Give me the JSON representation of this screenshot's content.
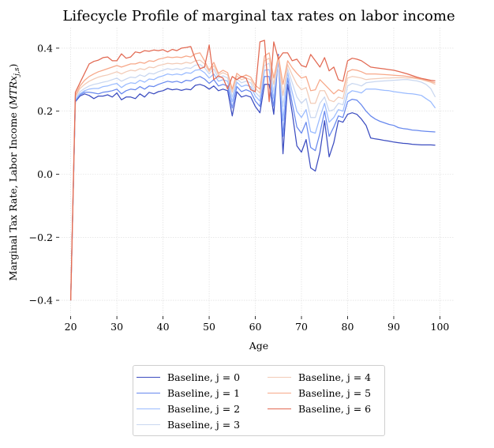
{
  "chart_data": {
    "type": "line",
    "title": "Lifecycle Profile of marginal tax rates on labor income",
    "xlabel": "Age",
    "ylabel_main": "Marginal Tax Rate, Labor Income (",
    "ylabel_math": "MTRx",
    "ylabel_sub": "j,s",
    "ylabel_close": ")",
    "xlim": [
      17.5,
      103
    ],
    "ylim": [
      -0.45,
      0.465
    ],
    "xticks": [
      20,
      30,
      40,
      50,
      60,
      70,
      80,
      90,
      100
    ],
    "yticks": [
      -0.4,
      -0.2,
      0.0,
      0.2,
      0.4
    ],
    "ytick_labels": [
      "−0.4",
      "−0.2",
      "0.0",
      "0.2",
      "0.4"
    ],
    "grid": true,
    "legend_placement": "below",
    "x": [
      20,
      21,
      22,
      23,
      24,
      25,
      26,
      27,
      28,
      29,
      30,
      31,
      32,
      33,
      34,
      35,
      36,
      37,
      38,
      39,
      40,
      41,
      42,
      43,
      44,
      45,
      46,
      47,
      48,
      49,
      50,
      51,
      52,
      53,
      54,
      55,
      56,
      57,
      58,
      59,
      60,
      61,
      62,
      63,
      64,
      65,
      66,
      67,
      68,
      69,
      70,
      71,
      72,
      73,
      74,
      75,
      76,
      77,
      78,
      79,
      80,
      81,
      82,
      83,
      84,
      85,
      86,
      87,
      88,
      89,
      90,
      91,
      92,
      93,
      94,
      95,
      96,
      97,
      98,
      99
    ],
    "series": [
      {
        "name": "Baseline, j = 0",
        "color": "#3b4cc0",
        "values": [
          -0.4,
          0.23,
          0.248,
          0.255,
          0.25,
          0.24,
          0.248,
          0.248,
          0.252,
          0.245,
          0.258,
          0.236,
          0.245,
          0.245,
          0.24,
          0.255,
          0.245,
          0.26,
          0.255,
          0.262,
          0.265,
          0.272,
          0.268,
          0.27,
          0.266,
          0.27,
          0.268,
          0.282,
          0.285,
          0.28,
          0.27,
          0.28,
          0.265,
          0.27,
          0.265,
          0.185,
          0.262,
          0.245,
          0.25,
          0.245,
          0.215,
          0.195,
          0.285,
          0.285,
          0.19,
          0.38,
          0.065,
          0.285,
          0.195,
          0.09,
          0.07,
          0.11,
          0.02,
          0.01,
          0.07,
          0.17,
          0.055,
          0.1,
          0.17,
          0.165,
          0.19,
          0.195,
          0.19,
          0.175,
          0.155,
          0.115,
          0.112,
          0.11,
          0.107,
          0.105,
          0.102,
          0.1,
          0.098,
          0.097,
          0.095,
          0.094,
          0.093,
          0.093,
          0.093,
          0.092
        ]
      },
      {
        "name": "Baseline, j = 1",
        "color": "#6788ee",
        "values": [
          -0.4,
          0.233,
          0.252,
          0.26,
          0.26,
          0.258,
          0.255,
          0.26,
          0.262,
          0.265,
          0.27,
          0.255,
          0.265,
          0.27,
          0.268,
          0.278,
          0.27,
          0.28,
          0.278,
          0.285,
          0.29,
          0.295,
          0.292,
          0.295,
          0.29,
          0.298,
          0.296,
          0.305,
          0.31,
          0.302,
          0.288,
          0.3,
          0.28,
          0.285,
          0.28,
          0.21,
          0.278,
          0.262,
          0.268,
          0.262,
          0.232,
          0.215,
          0.31,
          0.31,
          0.215,
          0.375,
          0.12,
          0.305,
          0.225,
          0.15,
          0.13,
          0.165,
          0.085,
          0.075,
          0.13,
          0.2,
          0.12,
          0.15,
          0.185,
          0.18,
          0.23,
          0.238,
          0.235,
          0.22,
          0.2,
          0.185,
          0.175,
          0.168,
          0.163,
          0.158,
          0.155,
          0.148,
          0.145,
          0.143,
          0.14,
          0.139,
          0.137,
          0.136,
          0.135,
          0.134
        ]
      },
      {
        "name": "Baseline, j = 2",
        "color": "#9abbff",
        "values": [
          -0.4,
          0.236,
          0.255,
          0.265,
          0.27,
          0.272,
          0.272,
          0.278,
          0.28,
          0.285,
          0.288,
          0.275,
          0.285,
          0.29,
          0.288,
          0.298,
          0.292,
          0.302,
          0.3,
          0.308,
          0.312,
          0.318,
          0.315,
          0.318,
          0.315,
          0.322,
          0.32,
          0.33,
          0.332,
          0.322,
          0.305,
          0.318,
          0.295,
          0.3,
          0.295,
          0.23,
          0.292,
          0.278,
          0.283,
          0.278,
          0.248,
          0.232,
          0.33,
          0.332,
          0.24,
          0.372,
          0.17,
          0.322,
          0.26,
          0.2,
          0.18,
          0.205,
          0.135,
          0.13,
          0.18,
          0.225,
          0.165,
          0.18,
          0.205,
          0.2,
          0.255,
          0.265,
          0.262,
          0.258,
          0.27,
          0.27,
          0.27,
          0.268,
          0.266,
          0.265,
          0.262,
          0.26,
          0.258,
          0.256,
          0.255,
          0.253,
          0.25,
          0.24,
          0.23,
          0.21
        ]
      },
      {
        "name": "Baseline, j = 3",
        "color": "#c9d7f0",
        "values": [
          -0.4,
          0.24,
          0.262,
          0.272,
          0.28,
          0.285,
          0.288,
          0.292,
          0.295,
          0.3,
          0.305,
          0.295,
          0.302,
          0.308,
          0.306,
          0.315,
          0.31,
          0.32,
          0.318,
          0.325,
          0.33,
          0.335,
          0.332,
          0.335,
          0.332,
          0.338,
          0.336,
          0.346,
          0.348,
          0.338,
          0.318,
          0.334,
          0.305,
          0.312,
          0.305,
          0.245,
          0.302,
          0.29,
          0.295,
          0.29,
          0.26,
          0.245,
          0.345,
          0.352,
          0.262,
          0.37,
          0.215,
          0.335,
          0.29,
          0.245,
          0.225,
          0.24,
          0.18,
          0.18,
          0.225,
          0.245,
          0.2,
          0.205,
          0.225,
          0.22,
          0.28,
          0.288,
          0.285,
          0.28,
          0.29,
          0.292,
          0.294,
          0.295,
          0.296,
          0.297,
          0.298,
          0.299,
          0.3,
          0.3,
          0.298,
          0.296,
          0.292,
          0.285,
          0.272,
          0.245
        ]
      },
      {
        "name": "Baseline, j = 4",
        "color": "#f2cbb7",
        "values": [
          -0.4,
          0.245,
          0.272,
          0.285,
          0.295,
          0.302,
          0.308,
          0.312,
          0.315,
          0.32,
          0.325,
          0.318,
          0.325,
          0.33,
          0.328,
          0.335,
          0.332,
          0.34,
          0.338,
          0.345,
          0.348,
          0.352,
          0.35,
          0.352,
          0.35,
          0.355,
          0.352,
          0.36,
          0.362,
          0.35,
          0.325,
          0.345,
          0.315,
          0.322,
          0.315,
          0.26,
          0.312,
          0.3,
          0.305,
          0.3,
          0.272,
          0.258,
          0.36,
          0.368,
          0.285,
          0.37,
          0.25,
          0.348,
          0.315,
          0.285,
          0.268,
          0.275,
          0.225,
          0.225,
          0.265,
          0.265,
          0.235,
          0.23,
          0.245,
          0.24,
          0.305,
          0.31,
          0.308,
          0.305,
          0.3,
          0.302,
          0.303,
          0.304,
          0.305,
          0.305,
          0.306,
          0.306,
          0.306,
          0.305,
          0.305,
          0.303,
          0.3,
          0.296,
          0.292,
          0.285
        ]
      },
      {
        "name": "Baseline, j = 5",
        "color": "#f7a889",
        "values": [
          -0.4,
          0.25,
          0.28,
          0.298,
          0.31,
          0.318,
          0.325,
          0.33,
          0.335,
          0.34,
          0.345,
          0.34,
          0.345,
          0.35,
          0.35,
          0.355,
          0.352,
          0.36,
          0.358,
          0.365,
          0.368,
          0.372,
          0.37,
          0.372,
          0.37,
          0.375,
          0.372,
          0.382,
          0.385,
          0.36,
          0.33,
          0.355,
          0.32,
          0.33,
          0.322,
          0.27,
          0.32,
          0.308,
          0.315,
          0.308,
          0.282,
          0.27,
          0.375,
          0.385,
          0.305,
          0.375,
          0.285,
          0.36,
          0.338,
          0.32,
          0.305,
          0.31,
          0.265,
          0.268,
          0.3,
          0.285,
          0.27,
          0.255,
          0.268,
          0.262,
          0.325,
          0.332,
          0.33,
          0.325,
          0.318,
          0.318,
          0.318,
          0.317,
          0.316,
          0.315,
          0.314,
          0.313,
          0.312,
          0.31,
          0.308,
          0.305,
          0.302,
          0.298,
          0.294,
          0.29
        ]
      },
      {
        "name": "Baseline, j = 6",
        "color": "#e26952",
        "values": [
          -0.4,
          0.26,
          0.29,
          0.32,
          0.35,
          0.358,
          0.362,
          0.37,
          0.372,
          0.36,
          0.36,
          0.382,
          0.368,
          0.372,
          0.388,
          0.385,
          0.392,
          0.39,
          0.394,
          0.392,
          0.395,
          0.388,
          0.396,
          0.392,
          0.4,
          0.402,
          0.405,
          0.365,
          0.335,
          0.34,
          0.41,
          0.3,
          0.312,
          0.305,
          0.27,
          0.31,
          0.3,
          0.31,
          0.305,
          0.268,
          0.262,
          0.42,
          0.425,
          0.23,
          0.42,
          0.365,
          0.385,
          0.385,
          0.36,
          0.365,
          0.345,
          0.34,
          0.38,
          0.36,
          0.34,
          0.37,
          0.328,
          0.34,
          0.3,
          0.295,
          0.36,
          0.368,
          0.365,
          0.36,
          0.35,
          0.34,
          0.338,
          0.336,
          0.334,
          0.332,
          0.33,
          0.326,
          0.322,
          0.318,
          0.313,
          0.308,
          0.304,
          0.301,
          0.298,
          0.296
        ]
      }
    ]
  }
}
